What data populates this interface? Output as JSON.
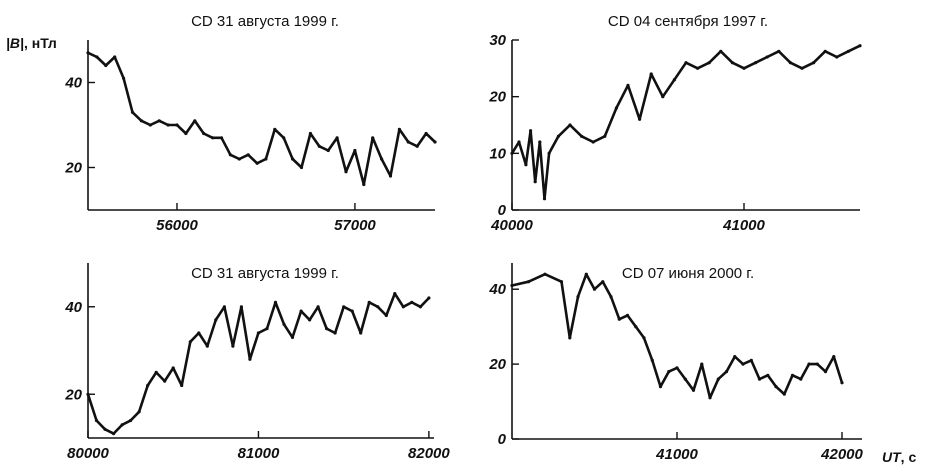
{
  "figure": {
    "y_label_italic": "|B|",
    "y_label_unit": "нТл",
    "x_label_italic": "UT",
    "x_label_unit": "с"
  },
  "chart_data": [
    {
      "id": "p1",
      "type": "line",
      "title": "CD 31 августа 1999 г.",
      "xlim": [
        55500,
        57450
      ],
      "ylim": [
        10,
        50
      ],
      "x_ticks": [
        56000,
        57000
      ],
      "y_ticks": [
        20,
        40
      ],
      "series": [
        {
          "x": [
            55500,
            55550,
            55600,
            55650,
            55700,
            55750,
            55800,
            55850,
            55900,
            55950,
            56000,
            56050,
            56100,
            56150,
            56200,
            56250,
            56300,
            56350,
            56400,
            56450,
            56500,
            56550,
            56600,
            56650,
            56700,
            56750,
            56800,
            56850,
            56900,
            56950,
            57000,
            57050,
            57100,
            57150,
            57200,
            57250,
            57300,
            57350,
            57400,
            57450
          ],
          "y": [
            47,
            46,
            44,
            46,
            41,
            33,
            31,
            30,
            31,
            30,
            30,
            28,
            31,
            28,
            27,
            27,
            23,
            22,
            23,
            21,
            22,
            29,
            27,
            22,
            20,
            28,
            25,
            24,
            27,
            19,
            24,
            16,
            27,
            22,
            18,
            29,
            26,
            25,
            28,
            26
          ]
        }
      ]
    },
    {
      "id": "p2",
      "type": "line",
      "title": "CD 04 сентября 1997 г.",
      "xlim": [
        40000,
        41500
      ],
      "ylim": [
        0,
        30
      ],
      "x_ticks": [
        40000,
        41000
      ],
      "y_ticks": [
        0,
        10,
        20,
        30
      ],
      "series": [
        {
          "x": [
            40000,
            40030,
            40060,
            40080,
            40100,
            40120,
            40140,
            40160,
            40200,
            40250,
            40300,
            40350,
            40400,
            40450,
            40500,
            40550,
            40600,
            40650,
            40700,
            40750,
            40800,
            40850,
            40900,
            40950,
            41000,
            41050,
            41100,
            41150,
            41200,
            41250,
            41300,
            41350,
            41400,
            41450,
            41500
          ],
          "y": [
            10,
            12,
            8,
            14,
            5,
            12,
            2,
            10,
            13,
            15,
            13,
            12,
            13,
            18,
            22,
            16,
            24,
            20,
            23,
            26,
            25,
            26,
            28,
            26,
            25,
            26,
            27,
            28,
            26,
            25,
            26,
            28,
            27,
            28,
            29
          ]
        }
      ]
    },
    {
      "id": "p3",
      "type": "line",
      "title": "CD 31 августа 1999 г.",
      "xlim": [
        80000,
        82030
      ],
      "ylim": [
        10,
        50
      ],
      "x_ticks": [
        80000,
        81000,
        82000
      ],
      "y_ticks": [
        20,
        40
      ],
      "series": [
        {
          "x": [
            80000,
            80050,
            80100,
            80150,
            80200,
            80250,
            80300,
            80350,
            80400,
            80450,
            80500,
            80550,
            80600,
            80650,
            80700,
            80750,
            80800,
            80850,
            80900,
            80950,
            81000,
            81050,
            81100,
            81150,
            81200,
            81250,
            81300,
            81350,
            81400,
            81450,
            81500,
            81550,
            81600,
            81650,
            81700,
            81750,
            81800,
            81850,
            81900,
            81950,
            82000
          ],
          "y": [
            20,
            14,
            12,
            11,
            13,
            14,
            16,
            22,
            25,
            23,
            26,
            22,
            32,
            34,
            31,
            37,
            40,
            31,
            40,
            28,
            34,
            35,
            41,
            36,
            33,
            39,
            37,
            40,
            35,
            34,
            40,
            39,
            34,
            41,
            40,
            38,
            43,
            40,
            41,
            40,
            42
          ]
        }
      ]
    },
    {
      "id": "p4",
      "type": "line",
      "title": "CD 07 июня 2000 г.",
      "xlim": [
        40000,
        42000
      ],
      "ylim": [
        0,
        47
      ],
      "x_ticks": [
        41000,
        42000
      ],
      "y_ticks": [
        0,
        20,
        40
      ],
      "series": [
        {
          "x": [
            40000,
            40100,
            40200,
            40300,
            40350,
            40400,
            40450,
            40500,
            40550,
            40600,
            40650,
            40700,
            40750,
            40800,
            40850,
            40900,
            40950,
            41000,
            41050,
            41100,
            41150,
            41200,
            41250,
            41300,
            41350,
            41400,
            41450,
            41500,
            41550,
            41600,
            41650,
            41700,
            41750,
            41800,
            41850,
            41900,
            41950,
            42000
          ],
          "y": [
            41,
            42,
            44,
            42,
            27,
            38,
            44,
            40,
            42,
            38,
            32,
            33,
            30,
            27,
            21,
            14,
            18,
            19,
            16,
            13,
            20,
            11,
            16,
            18,
            22,
            20,
            21,
            16,
            17,
            14,
            12,
            17,
            16,
            20,
            20,
            18,
            22,
            15
          ]
        }
      ]
    }
  ]
}
